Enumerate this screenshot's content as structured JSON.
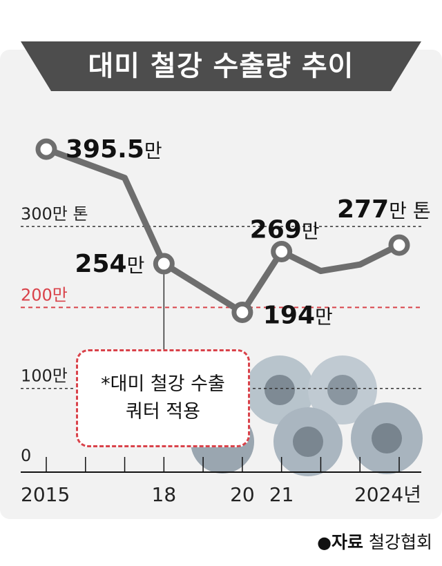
{
  "title": "대미 철강 수출량 추이",
  "annotation": {
    "line1": "*대미 철강 수출",
    "line2": "쿼터 적용"
  },
  "source": {
    "bullet": "●",
    "label": "자료",
    "value": "철강협회"
  },
  "colors": {
    "line": "#6e6e6e",
    "highlight": "#d9424a",
    "panel": "#f2f2f2",
    "title_band": "#4d4d4d"
  },
  "chart_data": {
    "type": "line",
    "title": "대미 철강 수출량 추이",
    "ylim": [
      0,
      420
    ],
    "xlim": [
      2015,
      2024
    ],
    "x_tick_labels": [
      {
        "x": 2015,
        "label": "2015"
      },
      {
        "x": 2018,
        "label": "18"
      },
      {
        "x": 2020,
        "label": "20"
      },
      {
        "x": 2021,
        "label": "21"
      },
      {
        "x": 2024,
        "label": "2024년"
      }
    ],
    "gridlines": [
      {
        "y": 300,
        "label": "300만 톤",
        "highlight": false
      },
      {
        "y": 200,
        "label": "200만",
        "highlight": true
      },
      {
        "y": 100,
        "label": "100만",
        "highlight": false
      }
    ],
    "zero_label": "0",
    "series": [
      {
        "points": [
          {
            "x": 2015,
            "y": 395.5
          },
          {
            "x": 2017,
            "y": 360
          },
          {
            "x": 2018,
            "y": 254
          },
          {
            "x": 2020,
            "y": 194
          },
          {
            "x": 2021,
            "y": 269
          },
          {
            "x": 2022,
            "y": 245
          },
          {
            "x": 2023,
            "y": 253
          },
          {
            "x": 2024,
            "y": 277
          }
        ]
      }
    ],
    "data_labels": [
      {
        "x": 2015,
        "value": "395.5",
        "unit": "만"
      },
      {
        "x": 2018,
        "value": "254",
        "unit": "만"
      },
      {
        "x": 2020,
        "value": "194",
        "unit": "만"
      },
      {
        "x": 2021,
        "value": "269",
        "unit": "만"
      },
      {
        "x": 2024,
        "value": "277",
        "unit": "만 톤"
      }
    ],
    "marked_points": [
      2015,
      2018,
      2020,
      2021,
      2024
    ],
    "drop_line_x": 2018
  }
}
